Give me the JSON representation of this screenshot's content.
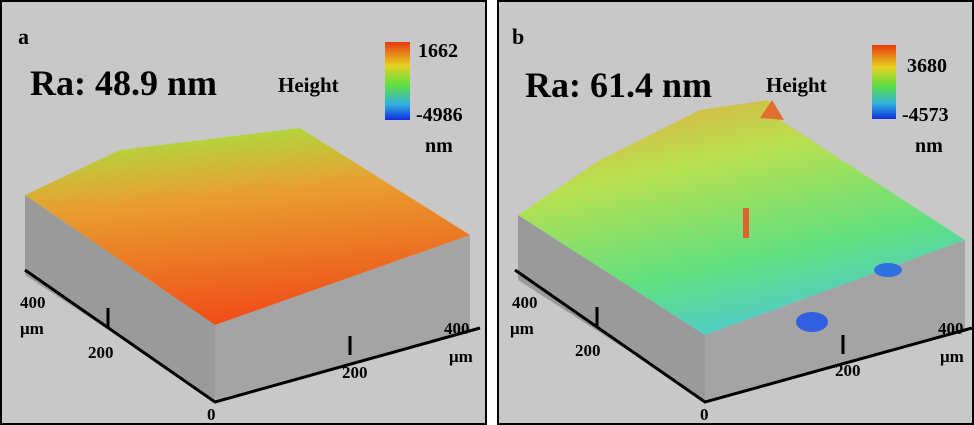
{
  "panels": [
    {
      "label": "a",
      "roughness": "Ra: 48.9 nm",
      "legend_title": "Height",
      "legend_max": "1662",
      "legend_min": "-4986",
      "legend_unit": "nm",
      "axis_labels": {
        "left_max": "400",
        "left_unit": "μm",
        "left_mid": "200",
        "origin": "0",
        "right_mid": "200",
        "right_max": "400",
        "right_unit": "μm"
      }
    },
    {
      "label": "b",
      "roughness": "Ra: 61.4 nm",
      "legend_title": "Height",
      "legend_max": "3680",
      "legend_min": "-4573",
      "legend_unit": "nm",
      "axis_labels": {
        "left_max": "400",
        "left_unit": "μm",
        "left_mid": "200",
        "origin": "0",
        "right_mid": "200",
        "right_max": "400",
        "right_unit": "μm"
      }
    }
  ]
}
